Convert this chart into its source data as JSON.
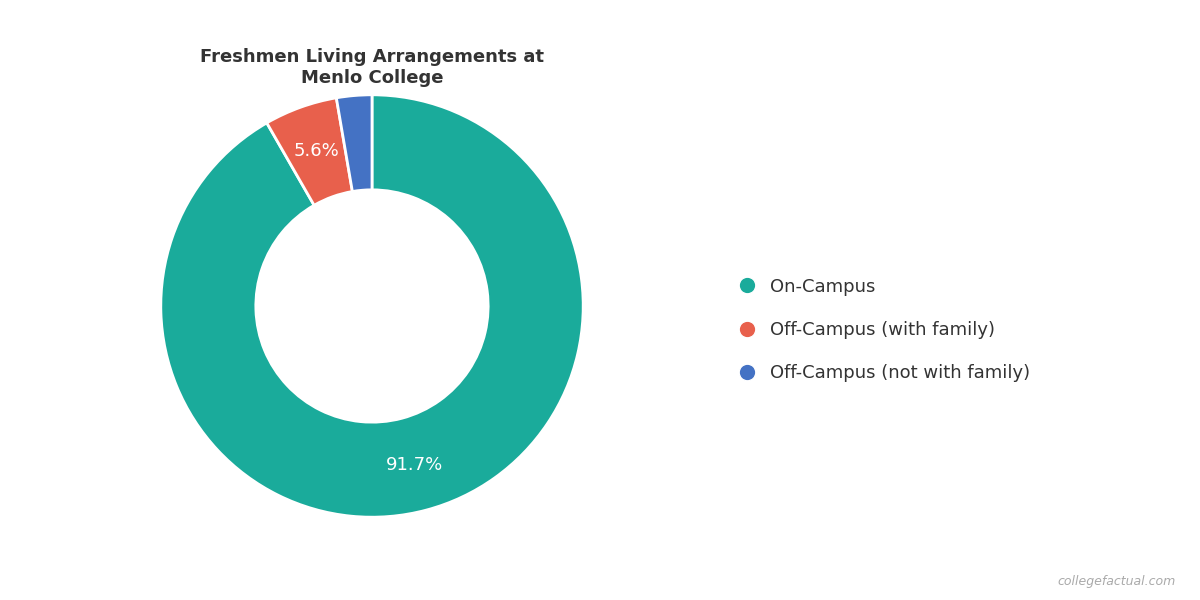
{
  "title": "Freshmen Living Arrangements at\nMenlo College",
  "labels": [
    "On-Campus",
    "Off-Campus (with family)",
    "Off-Campus (not with family)"
  ],
  "values": [
    91.7,
    5.6,
    2.7
  ],
  "colors": [
    "#1aab9b",
    "#e8604c",
    "#4472c4"
  ],
  "pct_labels": [
    "91.7%",
    "5.6%",
    ""
  ],
  "legend_labels": [
    "On-Campus",
    "Off-Campus (with family)",
    "Off-Campus (not with family)"
  ],
  "watermark": "collegefactual.com",
  "background_color": "#ffffff",
  "title_fontsize": 13,
  "wedge_edge_color": "#ffffff",
  "donut_hole": 0.55,
  "label_fontsize": 13,
  "legend_fontsize": 13
}
